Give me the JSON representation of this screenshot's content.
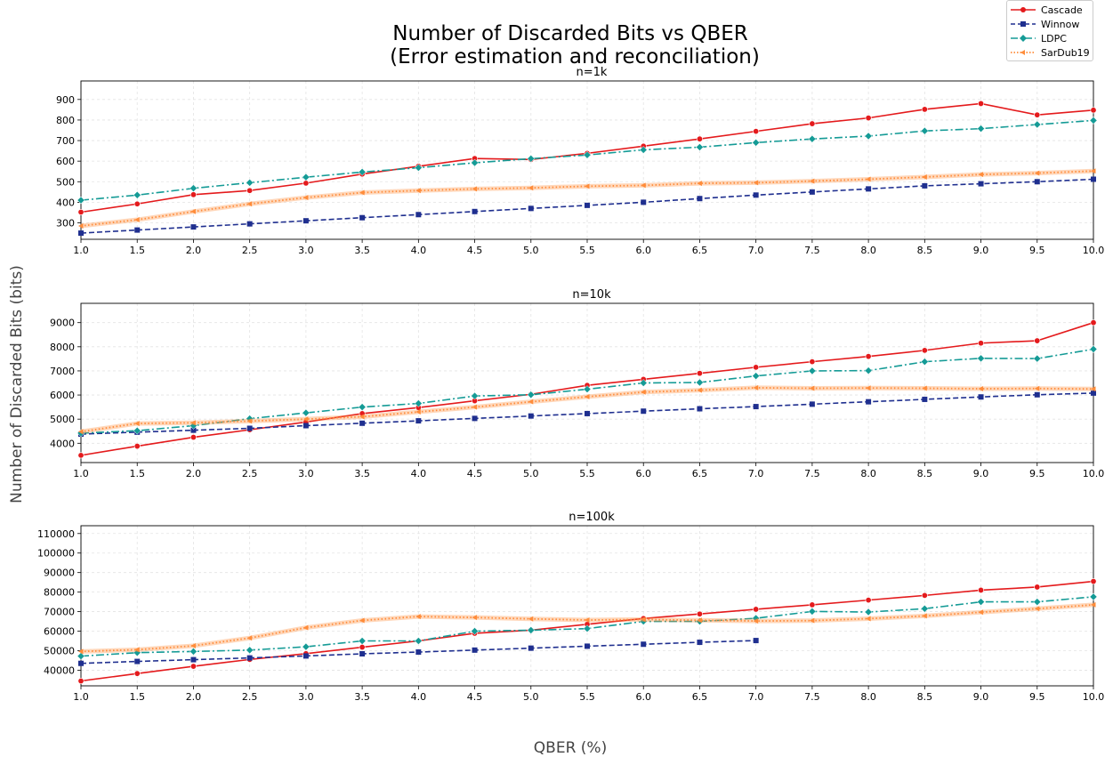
{
  "figure": {
    "title_line1": "Number of Discarded Bits vs QBER",
    "title_line2": "(Error estimation and reconciliation)",
    "xlabel": "QBER (%)",
    "ylabel": "Number of Discarded Bits (bits)"
  },
  "legend": {
    "placement": "top-right",
    "items": [
      {
        "name": "Cascade",
        "color": "#e41a1c",
        "marker": "circle",
        "dash": "solid"
      },
      {
        "name": "Winnow",
        "color": "#1f2f8f",
        "marker": "square",
        "dash": "dashed"
      },
      {
        "name": "LDPC",
        "color": "#159b96",
        "marker": "diamond",
        "dash": "dashdot"
      },
      {
        "name": "SarDub19",
        "color": "#ff8c3a",
        "marker": "triangle-left",
        "dash": "dotted"
      }
    ]
  },
  "chart_data": [
    {
      "type": "line",
      "title": "n=1k",
      "grid": true,
      "xlim": [
        1.0,
        10.0
      ],
      "ylim": [
        220,
        990
      ],
      "xticks": [
        "1.0",
        "1.5",
        "2.0",
        "2.5",
        "3.0",
        "3.5",
        "4.0",
        "4.5",
        "5.0",
        "5.5",
        "6.0",
        "6.5",
        "7.0",
        "7.5",
        "8.0",
        "8.5",
        "9.0",
        "9.5",
        "10.0"
      ],
      "yticks": [
        300,
        400,
        500,
        600,
        700,
        800,
        900
      ],
      "x": [
        1.0,
        1.5,
        2.0,
        2.5,
        3.0,
        3.5,
        4.0,
        4.5,
        5.0,
        5.5,
        6.0,
        6.5,
        7.0,
        7.5,
        8.0,
        8.5,
        9.0,
        9.5,
        10.0
      ],
      "series": [
        {
          "name": "Cascade",
          "values": [
            352,
            392,
            437,
            457,
            493,
            537,
            575,
            613,
            608,
            638,
            673,
            708,
            745,
            782,
            810,
            852,
            880,
            825,
            848
          ]
        },
        {
          "name": "Winnow",
          "values": [
            250,
            265,
            280,
            295,
            310,
            325,
            340,
            355,
            370,
            385,
            400,
            418,
            435,
            450,
            465,
            480,
            490,
            500,
            512
          ]
        },
        {
          "name": "LDPC",
          "values": [
            410,
            435,
            468,
            495,
            522,
            547,
            568,
            592,
            612,
            630,
            655,
            668,
            690,
            708,
            722,
            747,
            758,
            778,
            798
          ]
        },
        {
          "name": "SarDub19",
          "values": [
            285,
            315,
            355,
            392,
            423,
            447,
            457,
            465,
            470,
            478,
            482,
            492,
            495,
            503,
            512,
            523,
            535,
            542,
            552
          ]
        }
      ]
    },
    {
      "type": "line",
      "title": "n=10k",
      "grid": true,
      "xlim": [
        1.0,
        10.0
      ],
      "ylim": [
        3200,
        9800
      ],
      "xticks": [
        "1.0",
        "1.5",
        "2.0",
        "2.5",
        "3.0",
        "3.5",
        "4.0",
        "4.5",
        "5.0",
        "5.5",
        "6.0",
        "6.5",
        "7.0",
        "7.5",
        "8.0",
        "8.5",
        "9.0",
        "9.5",
        "10.0"
      ],
      "yticks": [
        4000,
        5000,
        6000,
        7000,
        8000,
        9000
      ],
      "x": [
        1.0,
        1.5,
        2.0,
        2.5,
        3.0,
        3.5,
        4.0,
        4.5,
        5.0,
        5.5,
        6.0,
        6.5,
        7.0,
        7.5,
        8.0,
        8.5,
        9.0,
        9.5,
        10.0
      ],
      "series": [
        {
          "name": "Cascade",
          "values": [
            3500,
            3880,
            4250,
            4560,
            4880,
            5230,
            5480,
            5760,
            6030,
            6400,
            6650,
            6900,
            7150,
            7380,
            7600,
            7850,
            8150,
            8250,
            9000
          ]
        },
        {
          "name": "Winnow",
          "values": [
            4380,
            4460,
            4540,
            4620,
            4730,
            4830,
            4930,
            5030,
            5130,
            5230,
            5330,
            5430,
            5520,
            5620,
            5720,
            5820,
            5920,
            6010,
            6080
          ]
        },
        {
          "name": "LDPC",
          "values": [
            4420,
            4520,
            4730,
            5020,
            5260,
            5500,
            5650,
            5960,
            6010,
            6240,
            6500,
            6520,
            6790,
            7000,
            7010,
            7380,
            7520,
            7510,
            7900
          ]
        },
        {
          "name": "SarDub19",
          "values": [
            4480,
            4820,
            4850,
            4920,
            5000,
            5100,
            5300,
            5500,
            5720,
            5930,
            6120,
            6200,
            6300,
            6280,
            6290,
            6280,
            6260,
            6270,
            6250
          ]
        }
      ]
    },
    {
      "type": "line",
      "title": "n=100k",
      "grid": true,
      "xlim": [
        1.0,
        10.0
      ],
      "ylim": [
        32000,
        114000
      ],
      "xticks": [
        "1.0",
        "1.5",
        "2.0",
        "2.5",
        "3.0",
        "3.5",
        "4.0",
        "4.5",
        "5.0",
        "5.5",
        "6.0",
        "6.5",
        "7.0",
        "7.5",
        "8.0",
        "8.5",
        "9.0",
        "9.5",
        "10.0"
      ],
      "yticks": [
        40000,
        50000,
        60000,
        70000,
        80000,
        90000,
        100000,
        110000
      ],
      "x": [
        1.0,
        1.5,
        2.0,
        2.5,
        3.0,
        3.5,
        4.0,
        4.5,
        5.0,
        5.5,
        6.0,
        6.5,
        7.0,
        7.5,
        8.0,
        8.5,
        9.0,
        9.5,
        10.0
      ],
      "series": [
        {
          "name": "Cascade",
          "values": [
            34500,
            38300,
            42000,
            45500,
            48500,
            51800,
            55000,
            58900,
            60500,
            63500,
            66500,
            68800,
            71200,
            73500,
            75900,
            78300,
            81000,
            82600,
            85500
          ]
        },
        {
          "name": "Winnow",
          "x": [
            1.0,
            1.5,
            2.0,
            2.5,
            3.0,
            3.5,
            4.0,
            4.5,
            5.0,
            5.5,
            6.0,
            6.5,
            7.0
          ],
          "values": [
            43500,
            44500,
            45400,
            46300,
            47300,
            48400,
            49300,
            50300,
            51300,
            52300,
            53300,
            54300,
            55200
          ]
        },
        {
          "name": "LDPC",
          "values": [
            47200,
            49000,
            49600,
            50300,
            52000,
            55000,
            55000,
            60000,
            60500,
            61300,
            65000,
            65000,
            66600,
            70100,
            69800,
            71500,
            75000,
            75000,
            77600
          ]
        },
        {
          "name": "SarDub19",
          "values": [
            49600,
            50500,
            52500,
            56500,
            61800,
            65500,
            67500,
            67000,
            66300,
            65700,
            66000,
            65600,
            65200,
            65400,
            66400,
            67800,
            69700,
            71500,
            73500
          ]
        }
      ]
    }
  ]
}
